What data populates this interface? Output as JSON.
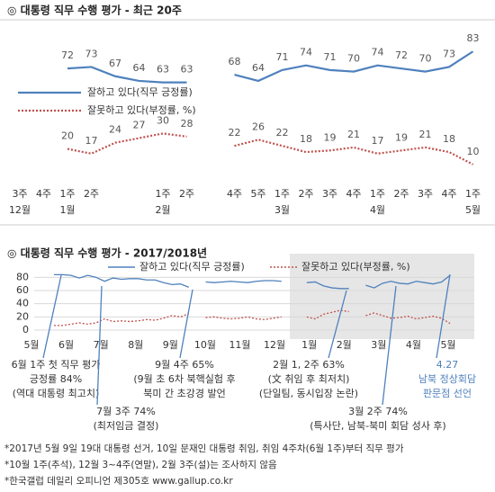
{
  "chart_data": [
    {
      "type": "line",
      "title": "◎ 대통령 직무 수행 평가 - 최근 20주",
      "categories": [
        "3주",
        "4주",
        "1주",
        "2주",
        null,
        null,
        "1주",
        "2주",
        null,
        "4주",
        "5주",
        "1주",
        "2주",
        "3주",
        "4주",
        "1주",
        "2주",
        "3주",
        "4주",
        "1주"
      ],
      "month_labels": [
        "12월",
        null,
        "1월",
        null,
        null,
        null,
        "2월",
        null,
        null,
        null,
        null,
        "3월",
        null,
        null,
        null,
        "4월",
        null,
        null,
        null,
        "5월"
      ],
      "ylim": [
        0,
        100
      ],
      "series": [
        {
          "name": "잘하고 있다(직무 긍정률)",
          "color": "#4f81bd",
          "style": "solid",
          "values": [
            null,
            null,
            72,
            73,
            67,
            64,
            63,
            63,
            null,
            68,
            64,
            71,
            74,
            71,
            70,
            74,
            72,
            70,
            73,
            83
          ]
        },
        {
          "name": "잘못하고 있다(부정률, %)",
          "color": "#c0504d",
          "style": "dotted",
          "values": [
            null,
            null,
            20,
            17,
            24,
            27,
            30,
            28,
            null,
            22,
            26,
            22,
            18,
            19,
            21,
            17,
            19,
            21,
            18,
            10
          ]
        }
      ]
    },
    {
      "type": "line",
      "title": "◎ 대통령 직무 수행 평가 - 2017/2018년",
      "x_labels": [
        "5월",
        "6월",
        "7월",
        "8월",
        "9월",
        "10월",
        "11월",
        "12월",
        "1월",
        "2월",
        "3월",
        "4월",
        "5월"
      ],
      "ylim": [
        0,
        90
      ],
      "yticks": [
        0,
        20,
        40,
        60,
        80
      ],
      "grid": true,
      "series": [
        {
          "name": "잘하고 있다(직무 긍정률)",
          "color": "#4f81bd",
          "style": "solid",
          "values": [
            84,
            84,
            83,
            79,
            83,
            80,
            74,
            79,
            77,
            78,
            78,
            76,
            76,
            72,
            69,
            70,
            65,
            null,
            73,
            72,
            73,
            74,
            73,
            72,
            74,
            75,
            75,
            74,
            null,
            null,
            72,
            73,
            67,
            64,
            63,
            63,
            null,
            68,
            64,
            71,
            74,
            71,
            70,
            74,
            72,
            70,
            73,
            83
          ]
        },
        {
          "name": "잘못하고 있다(부정률, %)",
          "color": "#c0504d",
          "style": "dotted",
          "values": [
            7,
            7,
            9,
            11,
            9,
            11,
            17,
            13,
            14,
            13,
            14,
            16,
            15,
            18,
            22,
            20,
            25,
            null,
            19,
            20,
            18,
            17,
            18,
            20,
            17,
            16,
            18,
            20,
            null,
            null,
            20,
            17,
            24,
            27,
            30,
            28,
            null,
            22,
            26,
            22,
            18,
            19,
            21,
            17,
            19,
            21,
            18,
            10
          ]
        }
      ]
    }
  ],
  "annotations": [
    {
      "lines": [
        "6월 1주 첫 직무 평가",
        "긍정률 84%",
        "(역대 대통령 최고치)"
      ]
    },
    {
      "lines": [
        "7월 3주 74%",
        "(최저임금 결정)"
      ]
    },
    {
      "lines": [
        "9월 4주 65%",
        "(9월 초 6차 북핵실험 후",
        "북미 간 초강경 발언"
      ]
    },
    {
      "lines": [
        "2월 1, 2주 63%",
        "(文 취임 후 최저치)",
        "(단일팀, 동시입장 논란)"
      ]
    },
    {
      "lines": [
        "3월 2주 74%",
        "(특사단, 남북-북미 회담 성사 후)"
      ]
    },
    {
      "lines": [
        "4.27",
        "남북 정상회담",
        "판문점 선언"
      ],
      "color": "#4f81bd"
    }
  ],
  "footnotes": [
    "*2017년 5월 9일 19대 대통령 선거, 10일 문재인 대통령 취임, 취임 4주차(6월 1주)부터 직무 평가",
    "*10월 1주(추석), 12월 3~4주(연말), 2월 3주(설)는 조사하지 않음",
    "*한국갤럽 데일리 오피니언 제305호 www.gallup.co.kr"
  ]
}
